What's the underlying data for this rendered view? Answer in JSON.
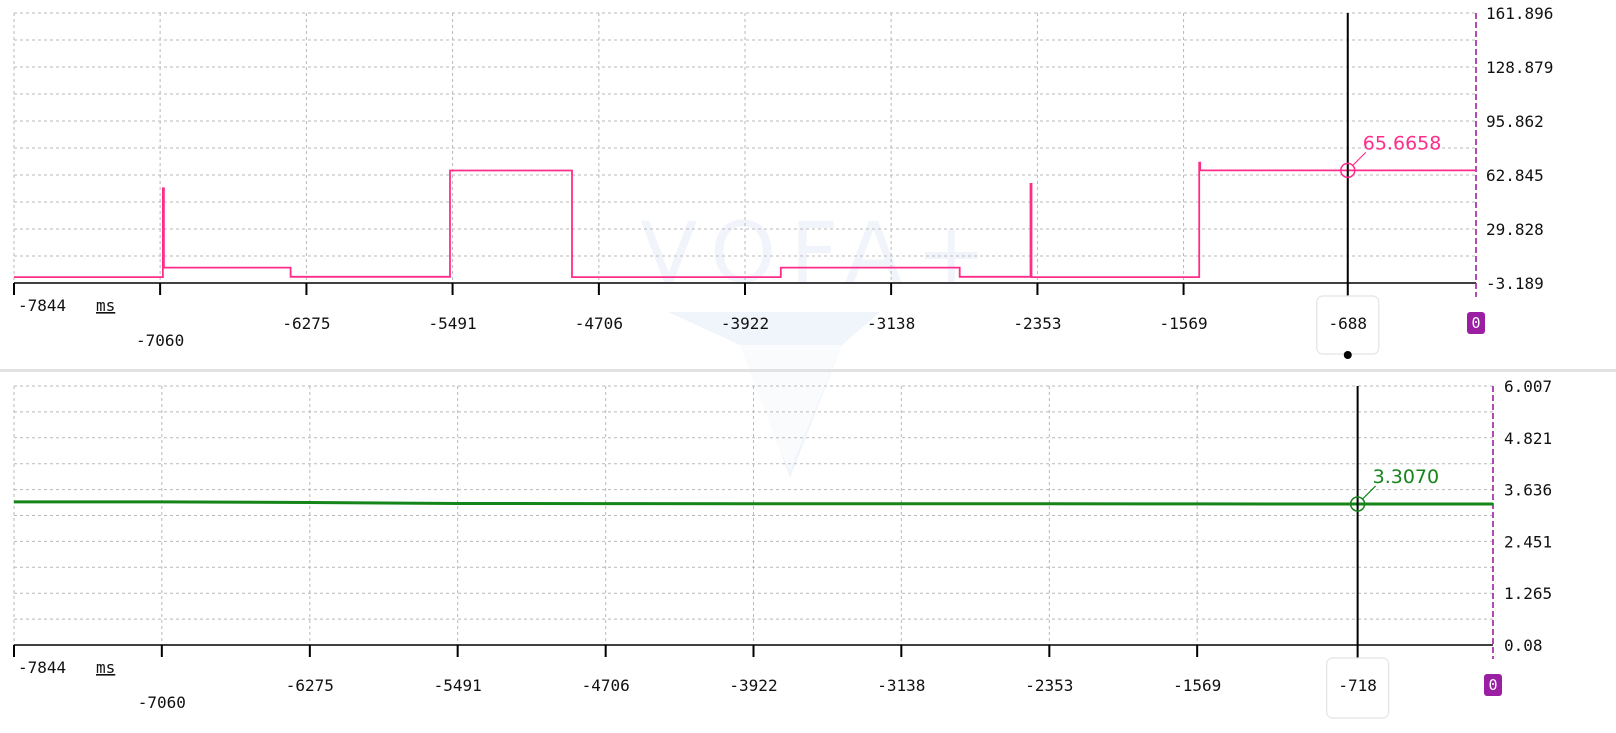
{
  "watermark": {
    "brand": "VOFA+",
    "color": "#e3ecf7"
  },
  "colors": {
    "grid": "#b9b9b9",
    "axis": "#000000",
    "zero_marker": "#9b1fa3",
    "divider": "#e2e2e2"
  },
  "chart_data": [
    {
      "type": "line",
      "series": [
        {
          "color": "#ff2d8a",
          "step": true,
          "values": [
            [
              -7844,
              0.4
            ],
            [
              -7045,
              0.4
            ],
            [
              -7045,
              54.7
            ],
            [
              -7040,
              54.7
            ],
            [
              -7040,
              6.2
            ],
            [
              -6360,
              6.2
            ],
            [
              -6360,
              0.6
            ],
            [
              -5505,
              0.6
            ],
            [
              -5505,
              65.6
            ],
            [
              -4850,
              65.6
            ],
            [
              -4850,
              0.4
            ],
            [
              -3730,
              0.4
            ],
            [
              -3730,
              6.2
            ],
            [
              -2770,
              6.2
            ],
            [
              -2770,
              0.6
            ],
            [
              -2390,
              0.6
            ],
            [
              -2390,
              57.4
            ],
            [
              -2385,
              57.4
            ],
            [
              -2385,
              0.4
            ],
            [
              -1485,
              0.4
            ],
            [
              -1485,
              70.4
            ],
            [
              -1480,
              70.4
            ],
            [
              -1480,
              65.6658
            ],
            [
              0,
              65.6658
            ]
          ]
        }
      ],
      "x_ticks": [
        "-7844",
        "-7060",
        "-6275",
        "-5491",
        "-4706",
        "-3922",
        "-3138",
        "-2353",
        "-1569"
      ],
      "x_unit": "ms",
      "y_ticks": [
        "161.896",
        "128.879",
        "95.862",
        "62.845",
        "29.828",
        "-3.189"
      ],
      "xlim": [
        -7844,
        0
      ],
      "ylim": [
        -3.189,
        161.896
      ],
      "grid": true,
      "cursor": {
        "x": -688,
        "label": "-688",
        "value": 65.6658,
        "value_label": "65.6658"
      },
      "origin_label": "0"
    },
    {
      "type": "line",
      "series": [
        {
          "color": "#15851a",
          "values": [
            [
              -7844,
              3.354
            ],
            [
              -7060,
              3.355
            ],
            [
              -6275,
              3.34
            ],
            [
              -5491,
              3.318
            ],
            [
              -4706,
              3.316
            ],
            [
              -3922,
              3.314
            ],
            [
              -3138,
              3.313
            ],
            [
              -2353,
              3.311
            ],
            [
              -1569,
              3.309
            ],
            [
              -718,
              3.307
            ],
            [
              0,
              3.307
            ]
          ]
        }
      ],
      "x_ticks": [
        "-7844",
        "-7060",
        "-6275",
        "-5491",
        "-4706",
        "-3922",
        "-3138",
        "-2353",
        "-1569"
      ],
      "x_unit": "ms",
      "y_ticks": [
        "6.007",
        "4.821",
        "3.636",
        "2.451",
        "1.265",
        "0.08"
      ],
      "xlim": [
        -7844,
        0
      ],
      "ylim": [
        0.08,
        6.007
      ],
      "grid": true,
      "cursor": {
        "x": -718,
        "label": "-718",
        "value": 3.307,
        "value_label": "3.3070"
      },
      "origin_label": "0"
    }
  ]
}
